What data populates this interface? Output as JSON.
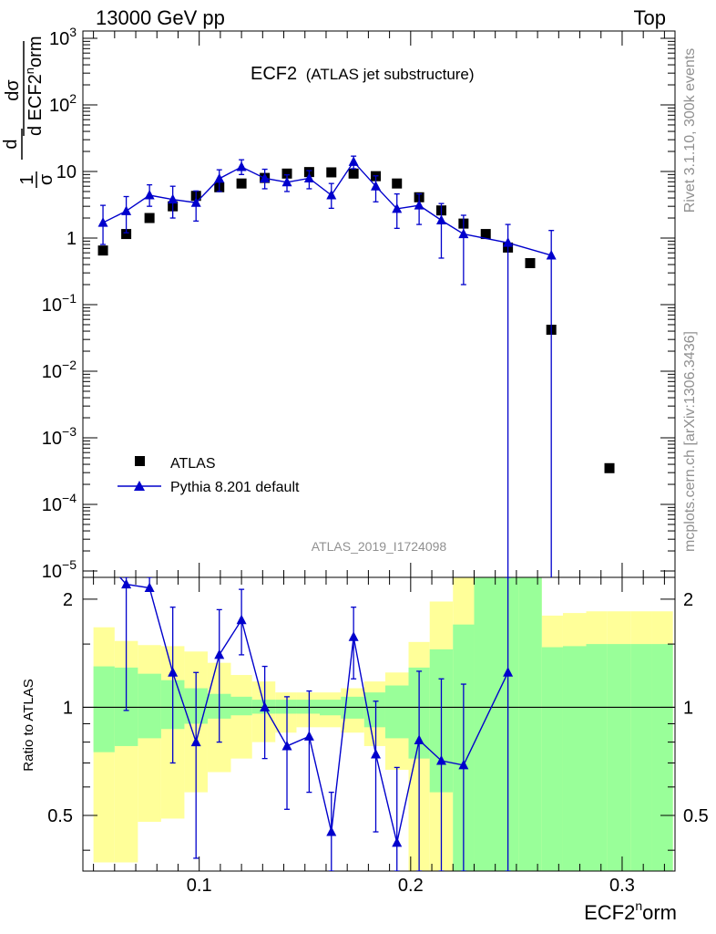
{
  "header": {
    "left": "13000 GeV pp",
    "right": "Top"
  },
  "side": {
    "rivet": "Rivet 3.1.10,  300k events",
    "mcplots": "mcplots.cern.ch [arXiv:1306.3436]"
  },
  "main": {
    "title_main": "ECF2",
    "title_sub": "(ATLAS jet substructure)",
    "ylabel": "1/σ dσ/d ECF2^norm",
    "watermark": "ATLAS_2019_I1724098"
  },
  "ratio": {
    "ylabel": "Ratio to ATLAS"
  },
  "xaxis": {
    "label": "ECF2^norm"
  },
  "chart_data": [
    {
      "type": "scatter",
      "title": "ECF2 (ATLAS jet substructure)",
      "ylabel": "1/σ dσ/d ECF2^norm",
      "yscale": "log",
      "ylim": [
        1e-05,
        1000.0
      ],
      "xlim": [
        0.045,
        0.325
      ],
      "legend": {
        "placement": "bottom-left"
      },
      "x_ticks": [
        0.1,
        0.2,
        0.3
      ],
      "y_ticks": [
        {
          "v": 1e-05,
          "b": "10",
          "e": "−5"
        },
        {
          "v": 0.0001,
          "b": "10",
          "e": "−4"
        },
        {
          "v": 0.001,
          "b": "10",
          "e": "−3"
        },
        {
          "v": 0.01,
          "b": "10",
          "e": "−2"
        },
        {
          "v": 0.1,
          "b": "10",
          "e": "−1"
        },
        {
          "v": 1,
          "b": "1",
          "e": ""
        },
        {
          "v": 10,
          "b": "10",
          "e": ""
        },
        {
          "v": 100,
          "b": "10",
          "e": "2"
        },
        {
          "v": 1000,
          "b": "10",
          "e": "3"
        }
      ],
      "series": [
        {
          "name": "ATLAS",
          "color": "#000000",
          "marker": "square",
          "x": [
            0.0545,
            0.0655,
            0.0765,
            0.0875,
            0.0985,
            0.1095,
            0.12,
            0.131,
            0.1415,
            0.152,
            0.1625,
            0.173,
            0.1835,
            0.1935,
            0.204,
            0.2145,
            0.225,
            0.2355,
            0.246,
            0.2565,
            0.2665,
            0.294
          ],
          "y": [
            0.65,
            1.15,
            2.0,
            3.0,
            4.3,
            5.8,
            6.6,
            8.0,
            9.3,
            9.8,
            9.7,
            9.3,
            8.5,
            6.6,
            4.1,
            2.6,
            1.65,
            1.15,
            0.72,
            0.42,
            0.042,
            0.00035
          ]
        },
        {
          "name": "Pythia 8.201 default",
          "color": "#0000cc",
          "marker": "triangle",
          "x": [
            0.0545,
            0.0655,
            0.0765,
            0.0875,
            0.0985,
            0.1095,
            0.12,
            0.131,
            0.1415,
            0.152,
            0.1625,
            0.173,
            0.1835,
            0.1935,
            0.204,
            0.2145,
            0.225,
            0.246,
            0.2665
          ],
          "y": [
            1.7,
            2.55,
            4.4,
            3.8,
            3.4,
            7.8,
            11.7,
            7.9,
            6.9,
            7.9,
            4.4,
            14.0,
            6.0,
            2.75,
            3.1,
            1.85,
            1.15,
            0.85,
            0.55
          ],
          "err_lo": [
            0.8,
            1.2,
            3.0,
            2.0,
            1.8,
            5.0,
            9.0,
            5.5,
            5.0,
            5.5,
            2.8,
            11.0,
            3.5,
            1.4,
            1.6,
            0.5,
            0.2,
            1e-06,
            1e-06
          ],
          "err_hi": [
            3.1,
            4.2,
            6.3,
            6.0,
            5.1,
            10.6,
            15.0,
            10.8,
            8.9,
            10.3,
            6.6,
            17.0,
            8.6,
            4.6,
            4.6,
            3.3,
            2.2,
            1.6,
            1.3
          ]
        }
      ]
    },
    {
      "type": "line",
      "ylabel": "Ratio to ATLAS",
      "ylim": [
        0.35,
        2.3
      ],
      "xlim": [
        0.045,
        0.325
      ],
      "x_ticks": [
        0.1,
        0.2,
        0.3
      ],
      "y_ticks": [
        0.5,
        1,
        2
      ],
      "reference": 1,
      "bands": {
        "edges": [
          0.05,
          0.06,
          0.071,
          0.082,
          0.093,
          0.104,
          0.115,
          0.125,
          0.136,
          0.146,
          0.157,
          0.167,
          0.178,
          0.188,
          0.199,
          0.209,
          0.22,
          0.23,
          0.241,
          0.251,
          0.262,
          0.272,
          0.283,
          0.293,
          0.304,
          0.314,
          0.324
        ],
        "green": [
          [
            0.75,
            1.3
          ],
          [
            0.78,
            1.29
          ],
          [
            0.82,
            1.24
          ],
          [
            0.87,
            1.19
          ],
          [
            0.9,
            1.13
          ],
          [
            0.93,
            1.09
          ],
          [
            0.95,
            1.07
          ],
          [
            0.96,
            1.05
          ],
          [
            0.96,
            1.05
          ],
          [
            0.96,
            1.05
          ],
          [
            0.95,
            1.05
          ],
          [
            0.93,
            1.07
          ],
          [
            0.88,
            1.1
          ],
          [
            0.82,
            1.15
          ],
          [
            0.72,
            1.29
          ],
          [
            0.58,
            1.45
          ],
          [
            0.35,
            1.7
          ],
          [
            0.35,
            2.3
          ],
          [
            0.35,
            2.3
          ],
          [
            0.35,
            2.3
          ],
          [
            0.35,
            1.47
          ],
          [
            0.35,
            1.48
          ],
          [
            0.35,
            1.5
          ],
          [
            0.35,
            1.5
          ],
          [
            0.35,
            1.5
          ],
          [
            0.35,
            1.5
          ]
        ],
        "yellow": [
          [
            0.37,
            1.67
          ],
          [
            0.37,
            1.53
          ],
          [
            0.48,
            1.49
          ],
          [
            0.49,
            1.48
          ],
          [
            0.58,
            1.43
          ],
          [
            0.66,
            1.33
          ],
          [
            0.72,
            1.23
          ],
          [
            0.8,
            1.18
          ],
          [
            0.85,
            1.1
          ],
          [
            0.88,
            1.1
          ],
          [
            0.88,
            1.1
          ],
          [
            0.85,
            1.13
          ],
          [
            0.78,
            1.18
          ],
          [
            0.67,
            1.25
          ],
          [
            0.35,
            1.52
          ],
          [
            0.35,
            1.97
          ],
          [
            0.35,
            2.3
          ],
          [
            0.35,
            2.3
          ],
          [
            0.35,
            2.3
          ],
          [
            0.35,
            2.3
          ],
          [
            0.35,
            1.8
          ],
          [
            0.35,
            1.83
          ],
          [
            0.35,
            1.85
          ],
          [
            0.35,
            1.85
          ],
          [
            0.35,
            1.85
          ],
          [
            0.35,
            1.85
          ]
        ]
      },
      "series": [
        {
          "name": "Pythia 8.201 default",
          "color": "#0000cc",
          "marker": "triangle",
          "x": [
            0.0545,
            0.0655,
            0.0765,
            0.0875,
            0.0985,
            0.1095,
            0.12,
            0.131,
            0.1415,
            0.152,
            0.1625,
            0.173,
            0.1835,
            0.1935,
            0.204,
            0.2145,
            0.225,
            0.246
          ],
          "y": [
            2.6,
            2.2,
            2.15,
            1.25,
            0.8,
            1.4,
            1.75,
            1.0,
            0.78,
            0.83,
            0.45,
            1.57,
            0.74,
            0.42,
            0.81,
            0.71,
            0.69,
            1.25
          ],
          "err_lo": [
            2.6,
            0.98,
            2.15,
            0.7,
            0.38,
            0.8,
            1.4,
            0.72,
            0.52,
            0.58,
            0.35,
            1.2,
            0.45,
            0.35,
            0.35,
            0.35,
            0.35,
            0.35
          ],
          "err_hi": [
            2.6,
            2.3,
            2.3,
            1.9,
            1.25,
            1.87,
            2.13,
            1.3,
            1.07,
            1.11,
            0.58,
            1.9,
            1.04,
            0.68,
            1.26,
            1.2,
            1.16,
            2.3
          ]
        }
      ]
    }
  ]
}
